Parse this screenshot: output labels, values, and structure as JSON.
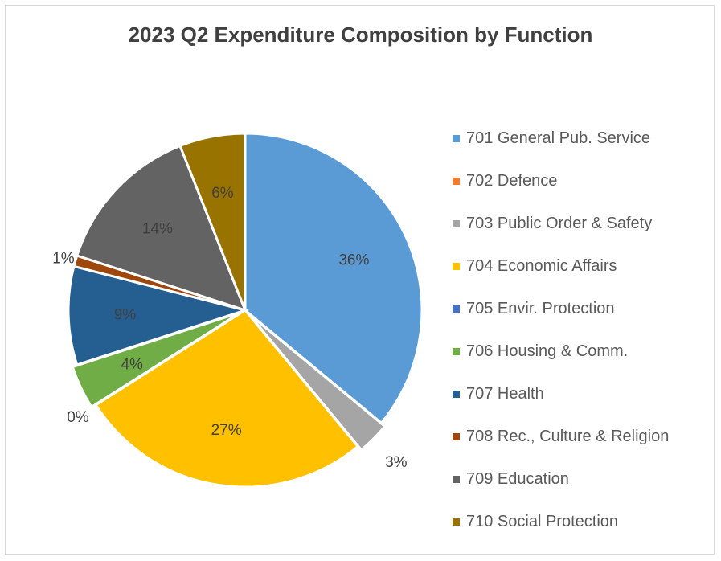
{
  "chart_data": {
    "type": "pie",
    "title": "2023 Q2 Expenditure Composition  by Function",
    "legend_position": "right",
    "slices": [
      {
        "name": "701 General Pub. Service",
        "value": 36,
        "label": "36%",
        "color": "#5b9bd5",
        "label_color": "#404040"
      },
      {
        "name": "702 Defence",
        "value": 0,
        "label": "",
        "color": "#ed7d31",
        "label_color": "#404040"
      },
      {
        "name": "703 Public Order & Safety",
        "value": 3,
        "label": "3%",
        "color": "#a5a5a5",
        "label_color": "#404040"
      },
      {
        "name": "704 Economic Affairs",
        "value": 27,
        "label": "27%",
        "color": "#ffc000",
        "label_color": "#404040"
      },
      {
        "name": "705 Envir. Protection",
        "value": 0,
        "label": "0%",
        "color": "#4472c4",
        "label_color": "#404040"
      },
      {
        "name": "706 Housing & Comm.",
        "value": 4,
        "label": "4%",
        "color": "#70ad47",
        "label_color": "#404040"
      },
      {
        "name": "707 Health",
        "value": 9,
        "label": "9%",
        "color": "#255e91",
        "label_color": "#404040"
      },
      {
        "name": "708 Rec., Culture & Religion",
        "value": 1,
        "label": "1%",
        "color": "#9e480e",
        "label_color": "#404040"
      },
      {
        "name": "709 Education",
        "value": 14,
        "label": "14%",
        "color": "#636363",
        "label_color": "#404040"
      },
      {
        "name": "710 Social Protection",
        "value": 6,
        "label": "6%",
        "color": "#997300",
        "label_color": "#404040"
      }
    ]
  }
}
